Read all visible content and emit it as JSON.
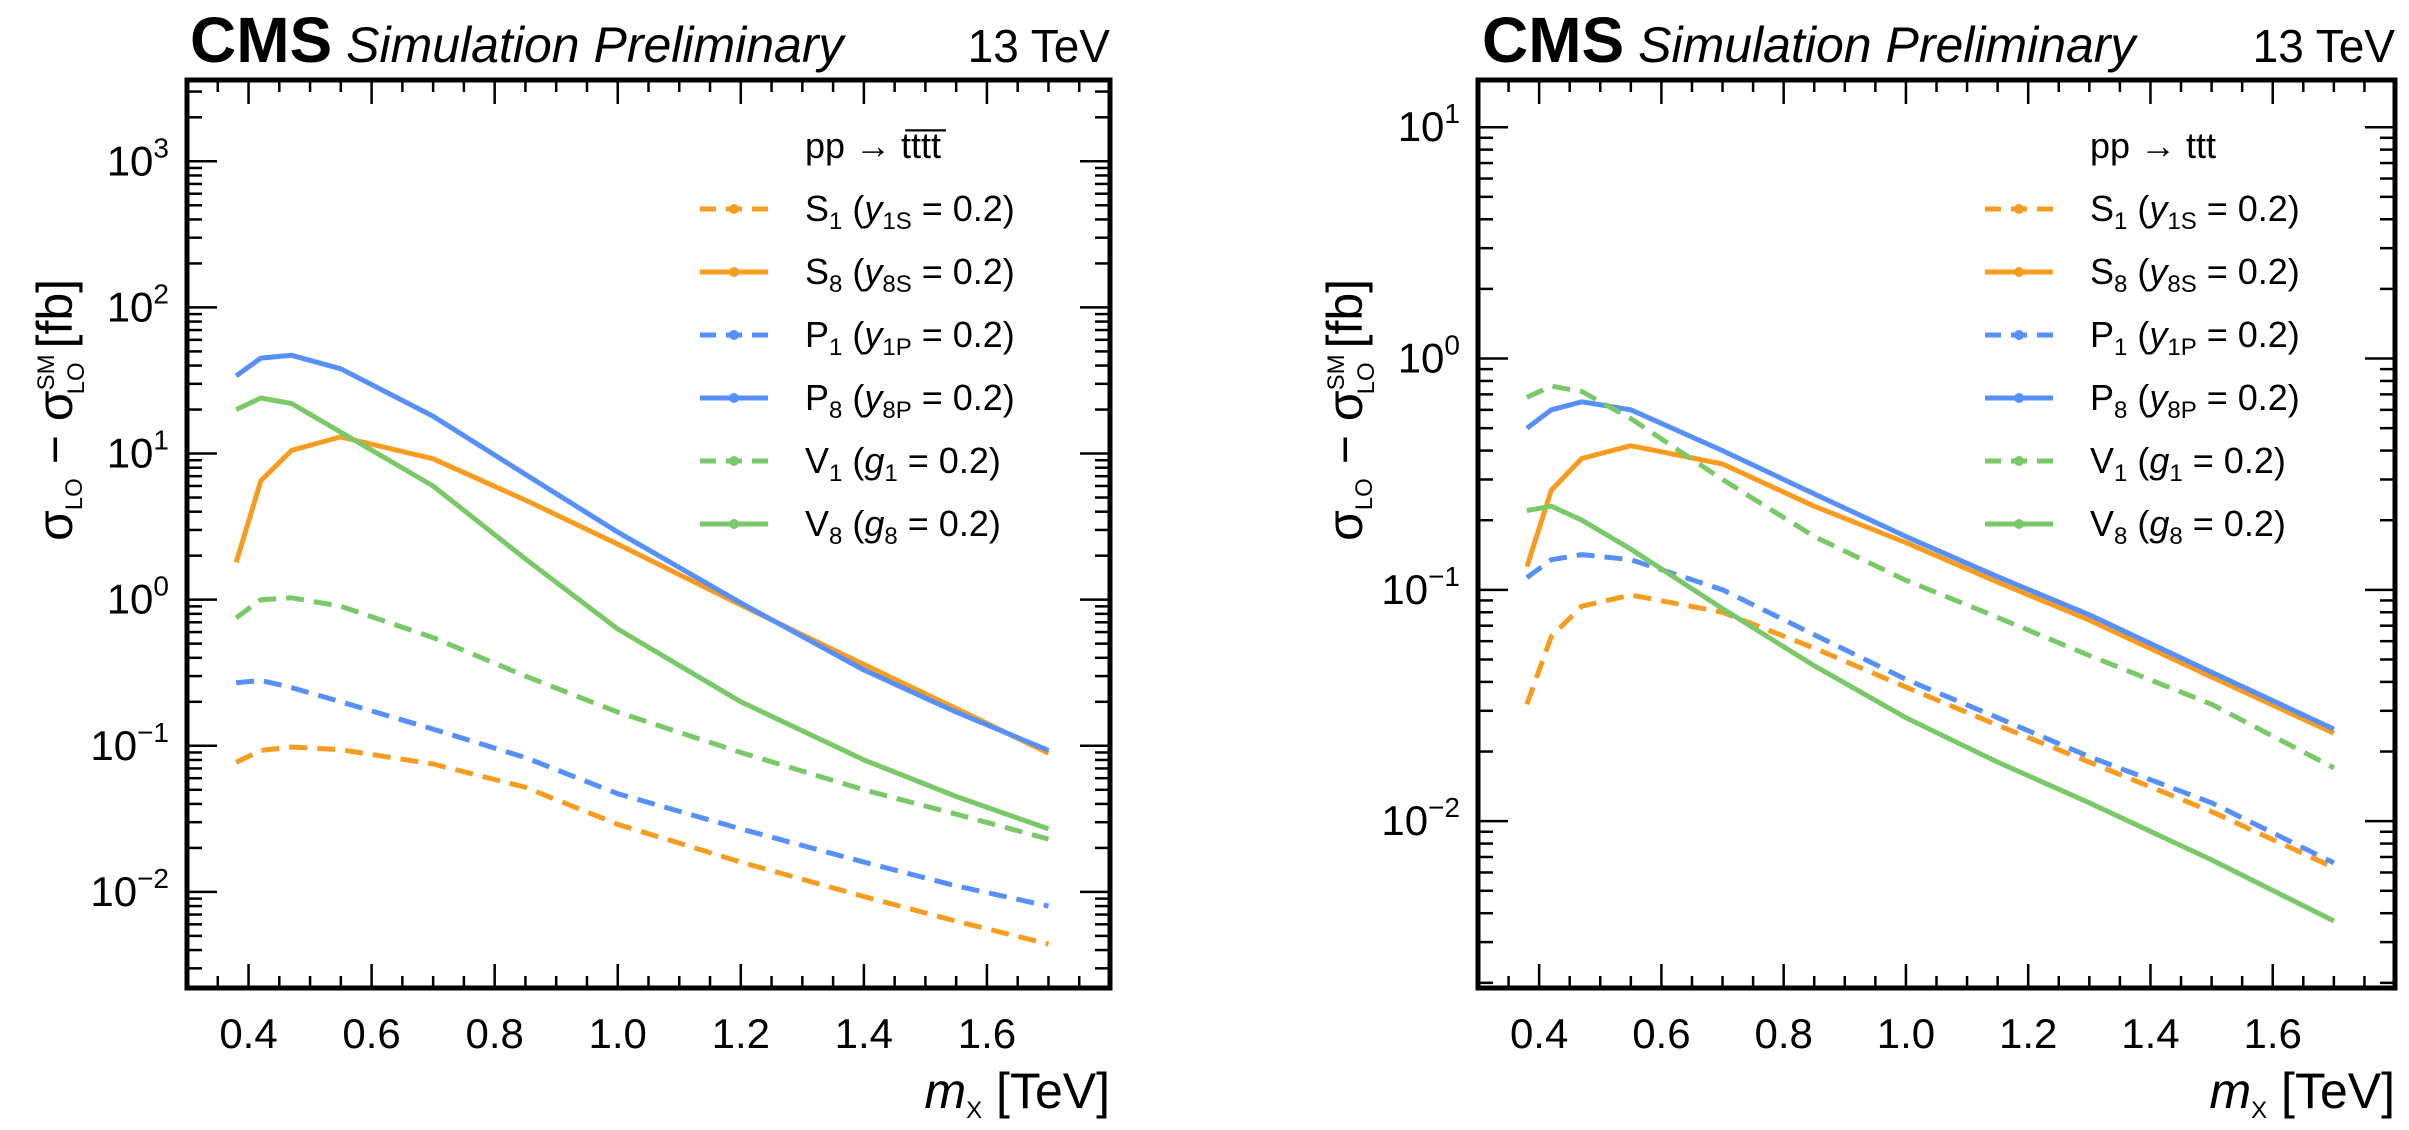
{
  "chart_data": [
    {
      "type": "line",
      "panel": "left",
      "header": {
        "experiment": "CMS",
        "extra": "Simulation Preliminary",
        "energy": "13 TeV"
      },
      "process": "pp → t t̄ t t̄",
      "process_label": "pp → tt̅tt̅",
      "xlabel": "m_X [TeV]",
      "ylabel": "σ_LO − σ_LO^SM [fb]",
      "yscale": "log",
      "xlim": [
        0.3,
        1.8
      ],
      "ylim": [
        0.0022,
        3600
      ],
      "xticks": [
        0.4,
        0.6,
        0.8,
        1.0,
        1.2,
        1.4,
        1.6
      ],
      "xtick_labels": [
        "0.4",
        "0.6",
        "0.8",
        "1.0",
        "1.2",
        "1.4",
        "1.6"
      ],
      "yticks": [
        -2,
        -1,
        0,
        1,
        2,
        3
      ],
      "legend_position": "top-right",
      "x": [
        0.38,
        0.42,
        0.47,
        0.55,
        0.7,
        0.85,
        1.0,
        1.2,
        1.4,
        1.55,
        1.7
      ],
      "series": [
        {
          "name": "S1",
          "label": "S",
          "sub": "1",
          "coupling": "y",
          "coupling_sub": "1S",
          "value": "0.2",
          "style": "dashed",
          "color": "#f89c20",
          "values": [
            0.077,
            0.093,
            0.098,
            0.094,
            0.075,
            0.052,
            0.029,
            0.016,
            0.0093,
            0.0063,
            0.0044
          ]
        },
        {
          "name": "S8",
          "label": "S",
          "sub": "8",
          "coupling": "y",
          "coupling_sub": "8S",
          "value": "0.2",
          "style": "solid",
          "color": "#f89c20",
          "values": [
            1.8,
            6.5,
            10.5,
            13,
            9.2,
            4.8,
            2.4,
            0.92,
            0.36,
            0.18,
            0.089
          ]
        },
        {
          "name": "P1",
          "label": "P",
          "sub": "1",
          "coupling": "y",
          "coupling_sub": "1P",
          "value": "0.2",
          "style": "dashed",
          "color": "#5790fc",
          "values": [
            0.27,
            0.28,
            0.25,
            0.2,
            0.13,
            0.083,
            0.047,
            0.027,
            0.016,
            0.011,
            0.008
          ]
        },
        {
          "name": "P8",
          "label": "P",
          "sub": "8",
          "coupling": "y",
          "coupling_sub": "8P",
          "value": "0.2",
          "style": "solid",
          "color": "#5790fc",
          "values": [
            34,
            45,
            47,
            38,
            18,
            7.2,
            2.9,
            0.95,
            0.33,
            0.17,
            0.093
          ]
        },
        {
          "name": "V1",
          "label": "V",
          "sub": "1",
          "coupling": "g",
          "coupling_sub": "1",
          "value": "0.2",
          "style": "dashed",
          "color": "#7ac968",
          "values": [
            0.75,
            1.0,
            1.03,
            0.9,
            0.55,
            0.3,
            0.17,
            0.09,
            0.05,
            0.034,
            0.023
          ]
        },
        {
          "name": "V8",
          "label": "V",
          "sub": "8",
          "coupling": "g",
          "coupling_sub": "8",
          "value": "0.2",
          "style": "solid",
          "color": "#7ac968",
          "values": [
            20,
            24,
            22,
            14,
            6.0,
            1.9,
            0.63,
            0.2,
            0.08,
            0.045,
            0.027
          ]
        }
      ]
    },
    {
      "type": "line",
      "panel": "right",
      "header": {
        "experiment": "CMS",
        "extra": "Simulation Preliminary",
        "energy": "13 TeV"
      },
      "process": "pp → ttt",
      "process_label": "pp → ttt",
      "xlabel": "m_X [TeV]",
      "ylabel": "σ_LO − σ_LO^SM [fb]",
      "yscale": "log",
      "xlim": [
        0.3,
        1.8
      ],
      "ylim": [
        0.0019,
        16
      ],
      "xticks": [
        0.4,
        0.6,
        0.8,
        1.0,
        1.2,
        1.4,
        1.6
      ],
      "xtick_labels": [
        "0.4",
        "0.6",
        "0.8",
        "1.0",
        "1.2",
        "1.4",
        "1.6"
      ],
      "yticks": [
        -2,
        -1,
        0,
        1
      ],
      "legend_position": "top-right",
      "x": [
        0.38,
        0.42,
        0.47,
        0.55,
        0.7,
        0.85,
        1.0,
        1.15,
        1.3,
        1.5,
        1.7
      ],
      "series": [
        {
          "name": "S1",
          "label": "S",
          "sub": "1",
          "coupling": "y",
          "coupling_sub": "1S",
          "value": "0.2",
          "style": "dashed",
          "color": "#f89c20",
          "values": [
            0.032,
            0.063,
            0.085,
            0.095,
            0.08,
            0.056,
            0.038,
            0.026,
            0.018,
            0.011,
            0.0063
          ]
        },
        {
          "name": "S8",
          "label": "S",
          "sub": "8",
          "coupling": "y",
          "coupling_sub": "8S",
          "value": "0.2",
          "style": "solid",
          "color": "#f89c20",
          "values": [
            0.126,
            0.27,
            0.37,
            0.42,
            0.35,
            0.23,
            0.16,
            0.108,
            0.074,
            0.042,
            0.024
          ]
        },
        {
          "name": "P1",
          "label": "P",
          "sub": "1",
          "coupling": "y",
          "coupling_sub": "1P",
          "value": "0.2",
          "style": "dashed",
          "color": "#5790fc",
          "values": [
            0.113,
            0.135,
            0.142,
            0.135,
            0.1,
            0.064,
            0.041,
            0.028,
            0.019,
            0.012,
            0.0066
          ]
        },
        {
          "name": "P8",
          "label": "P",
          "sub": "8",
          "coupling": "y",
          "coupling_sub": "8P",
          "value": "0.2",
          "style": "solid",
          "color": "#5790fc",
          "values": [
            0.5,
            0.6,
            0.65,
            0.6,
            0.4,
            0.26,
            0.17,
            0.114,
            0.078,
            0.044,
            0.025
          ]
        },
        {
          "name": "V1",
          "label": "V",
          "sub": "1",
          "coupling": "g",
          "coupling_sub": "1",
          "value": "0.2",
          "style": "dashed",
          "color": "#7ac968",
          "values": [
            0.68,
            0.76,
            0.72,
            0.55,
            0.3,
            0.17,
            0.11,
            0.076,
            0.052,
            0.032,
            0.017
          ]
        },
        {
          "name": "V8",
          "label": "V",
          "sub": "8",
          "coupling": "g",
          "coupling_sub": "8",
          "value": "0.2",
          "style": "solid",
          "color": "#7ac968",
          "values": [
            0.22,
            0.23,
            0.2,
            0.15,
            0.083,
            0.047,
            0.028,
            0.018,
            0.012,
            0.0068,
            0.0037
          ]
        }
      ]
    }
  ]
}
